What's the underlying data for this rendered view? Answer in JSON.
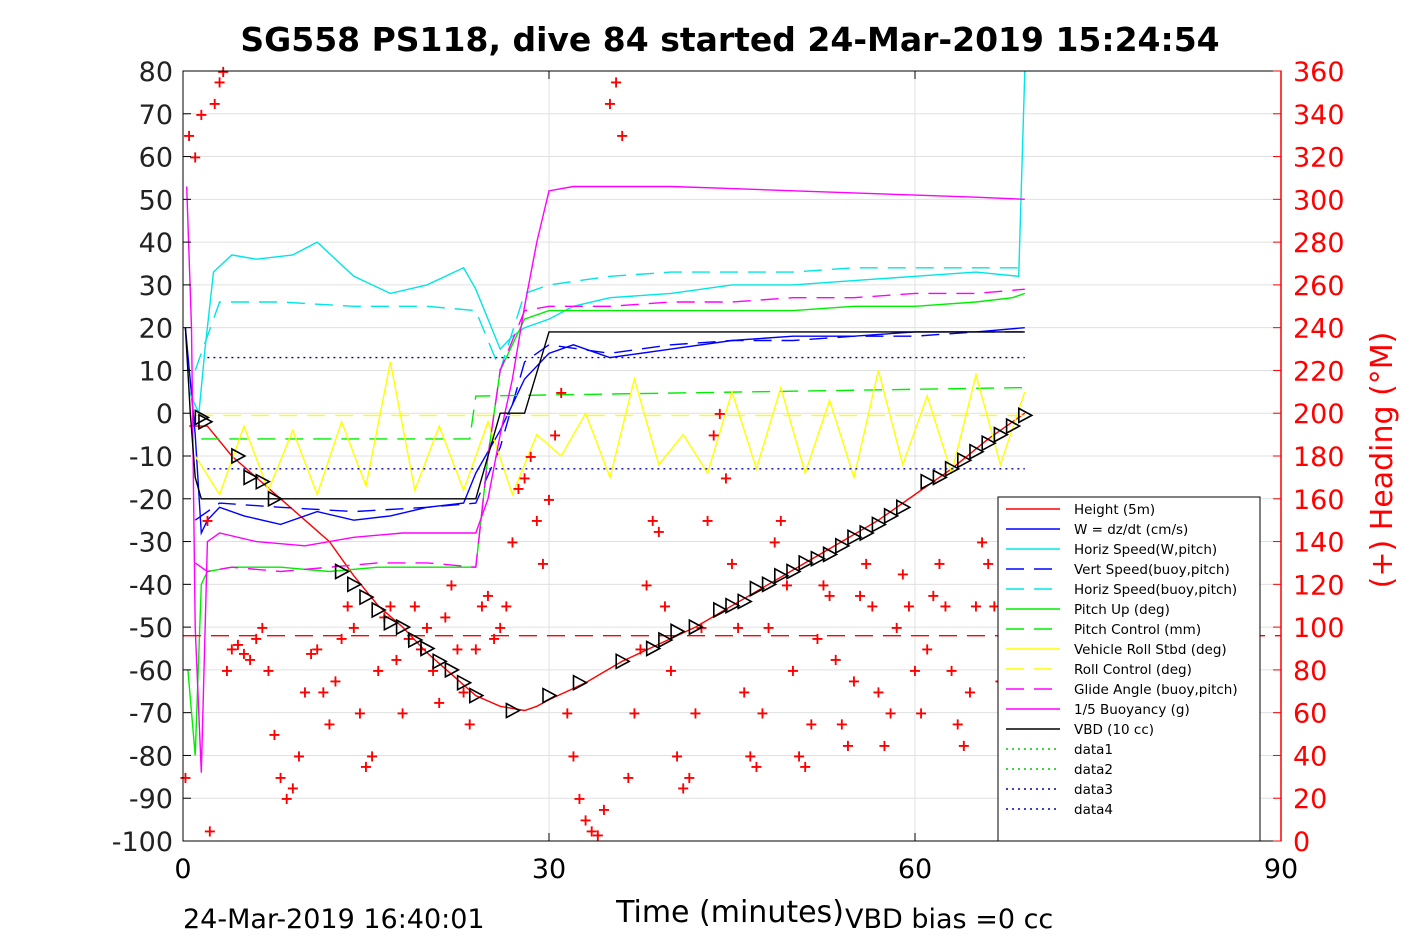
{
  "chart_data": {
    "type": "line",
    "title": "SG558 PS118, dive 84 started 24-Mar-2019 15:24:54",
    "xlabel": "Time (minutes)",
    "ylabel_right": "(+) Heading (°M)",
    "xlim": [
      0,
      90
    ],
    "ylim": [
      -100,
      80
    ],
    "ylim_right": [
      0,
      360
    ],
    "xticks": [
      0,
      30,
      60,
      90
    ],
    "yticks": [
      80,
      70,
      60,
      50,
      40,
      30,
      20,
      10,
      0,
      -10,
      -20,
      -30,
      -40,
      -50,
      -60,
      -70,
      -80,
      -90,
      -100
    ],
    "yticks_right": [
      360,
      340,
      320,
      300,
      280,
      260,
      240,
      220,
      200,
      180,
      160,
      140,
      120,
      100,
      80,
      60,
      40,
      20,
      0
    ],
    "grid": true,
    "legend_position": "lower-right",
    "footer_left": "24-Mar-2019 16:40:01",
    "footer_right": "VBD bias =0 cc",
    "colors": {
      "height": "#ff0000",
      "w": "#0000ff",
      "horiz": "#00e5e5",
      "vert_buoy": "#0000ff",
      "horiz_buoy": "#00e5e5",
      "pitch": "#00ee00",
      "pitch_ctl": "#00ee00",
      "roll": "#ffff00",
      "roll_ctl": "#ffff00",
      "glide": "#ff00ff",
      "buoyancy": "#ff00ff",
      "vbd": "#000000",
      "data": "#00c800",
      "data34": "#0000aa",
      "heading": "#ff0000",
      "axis_right": "#ff0000"
    },
    "series": [
      {
        "name": "Height (5m)",
        "key": "height",
        "style": "solid",
        "x": [
          0.5,
          2,
          4,
          6,
          8,
          10,
          12,
          14,
          16,
          18,
          20,
          22,
          24,
          26,
          27,
          28,
          29,
          30,
          33,
          36,
          39,
          42,
          45,
          48,
          51,
          54,
          57,
          60,
          63,
          66,
          69
        ],
        "values": [
          -3,
          -3,
          -10,
          -15,
          -20,
          -25,
          -30,
          -38,
          -45,
          -50,
          -56,
          -61,
          -66,
          -68.5,
          -69,
          -69.5,
          -68.5,
          -67,
          -63,
          -58,
          -54,
          -50,
          -45,
          -40,
          -35,
          -30,
          -25,
          -19,
          -13,
          -6,
          0
        ]
      },
      {
        "name": "W = dz/dt (cm/s)",
        "key": "w",
        "style": "solid",
        "x": [
          0.2,
          1,
          1.5,
          2,
          3,
          5,
          8,
          11,
          14,
          17,
          20,
          23,
          24,
          26,
          28,
          30,
          32,
          35,
          40,
          45,
          50,
          55,
          60,
          65,
          69
        ],
        "values": [
          20,
          -5,
          -28,
          -25,
          -22,
          -24,
          -26,
          -23,
          -25,
          -24,
          -22,
          -21,
          -14,
          -4,
          8,
          14,
          16,
          13,
          15,
          17,
          18,
          18,
          19,
          19,
          20
        ]
      },
      {
        "name": "Horiz Speed(W,pitch)",
        "key": "horiz",
        "style": "solid",
        "x": [
          0.5,
          1.3,
          1.8,
          2.5,
          4,
          6,
          9,
          11,
          14,
          17,
          20,
          23,
          24,
          25,
          26,
          27,
          28,
          30,
          32,
          35,
          40,
          45,
          50,
          55,
          60,
          65,
          68.5,
          69
        ],
        "values": [
          5,
          0,
          15,
          33,
          37,
          36,
          37,
          40,
          32,
          28,
          30,
          34,
          29,
          22,
          15,
          18,
          20,
          22,
          25,
          27,
          28,
          30,
          30,
          31,
          32,
          33,
          32,
          80
        ]
      },
      {
        "name": "Vert Speed(buoy,pitch)",
        "key": "vert_buoy",
        "style": "dashed",
        "x": [
          1,
          3,
          8,
          14,
          20,
          24,
          26,
          28,
          30,
          35,
          40,
          45,
          50,
          55,
          60,
          65,
          69
        ],
        "values": [
          -25,
          -21,
          -22,
          -23,
          -22,
          -21,
          -8,
          12,
          16,
          14,
          16,
          17,
          17,
          18,
          18,
          19,
          19
        ]
      },
      {
        "name": "Horiz Speed(buoy,pitch)",
        "key": "horiz_buoy",
        "style": "dashed",
        "x": [
          1,
          3,
          8,
          14,
          20,
          24,
          26,
          28,
          30,
          35,
          40,
          45,
          50,
          55,
          60,
          65,
          69
        ],
        "values": [
          10,
          26,
          26,
          25,
          25,
          24,
          10,
          28,
          30,
          32,
          33,
          33,
          33,
          34,
          34,
          34,
          34
        ]
      },
      {
        "name": "Pitch Up (deg)",
        "key": "pitch",
        "style": "solid",
        "x": [
          0.4,
          1,
          1.5,
          2,
          4,
          8,
          12,
          16,
          20,
          24,
          25,
          26,
          28,
          30,
          35,
          40,
          45,
          50,
          55,
          60,
          65,
          68,
          69
        ],
        "values": [
          -60,
          -80,
          -40,
          -37,
          -36,
          -36,
          -37,
          -36,
          -36,
          -36,
          -10,
          10,
          22,
          24,
          24,
          24,
          24,
          24,
          25,
          25,
          26,
          27,
          28
        ]
      },
      {
        "name": "Pitch Control (mm)",
        "key": "pitch_ctl",
        "style": "dashed",
        "x": [
          1.5,
          23.5,
          24,
          69
        ],
        "values": [
          -6,
          -6,
          4,
          6
        ]
      },
      {
        "name": "Vehicle Roll Stbd (deg)",
        "key": "roll",
        "style": "solid",
        "x": [
          1,
          3,
          5,
          7,
          9,
          11,
          13,
          15,
          17,
          19,
          21,
          23,
          25,
          27,
          29,
          31,
          33,
          35,
          37,
          39,
          41,
          43,
          45,
          47,
          49,
          51,
          53,
          55,
          57,
          59,
          61,
          63,
          65,
          67,
          69
        ],
        "values": [
          -10,
          -19,
          -3,
          -18,
          -4,
          -19,
          -2,
          -17,
          12,
          -18,
          -3,
          -18,
          -2,
          -19,
          -5,
          -10,
          0,
          -15,
          8,
          -12,
          -5,
          -14,
          5,
          -13,
          6,
          -14,
          3,
          -15,
          10,
          -12,
          4,
          -14,
          9,
          -12,
          5
        ]
      },
      {
        "name": "Roll Control (deg)",
        "key": "roll_ctl",
        "style": "dashed",
        "x": [
          1,
          69
        ],
        "values": [
          -0.5,
          -0.5
        ]
      },
      {
        "name": "Glide Angle (buoy,pitch)",
        "key": "glide",
        "style": "dashed",
        "x": [
          1,
          2,
          4,
          8,
          12,
          16,
          20,
          24,
          25,
          26,
          28,
          30,
          35,
          40,
          45,
          50,
          55,
          60,
          65,
          69
        ],
        "values": [
          -35,
          -37,
          -36,
          -37,
          -36,
          -35,
          -35,
          -36,
          -10,
          10,
          24,
          25,
          25,
          26,
          26,
          27,
          27,
          28,
          28,
          29
        ]
      },
      {
        "name": "1/5 Buoyancy (g)",
        "key": "buoyancy",
        "style": "solid",
        "x": [
          0.3,
          0.7,
          1,
          1.5,
          2,
          3,
          6,
          10,
          14,
          18,
          22,
          24,
          25,
          26,
          27,
          28,
          29,
          30,
          32,
          36,
          40,
          45,
          50,
          55,
          60,
          65,
          69
        ],
        "values": [
          53,
          20,
          -50,
          -84,
          -30,
          -28,
          -30,
          -31,
          -29,
          -28,
          -28,
          -28,
          -20,
          -5,
          8,
          25,
          40,
          52,
          53,
          53,
          53,
          52.5,
          52,
          51.5,
          51,
          50.5,
          50
        ]
      },
      {
        "name": "VBD (10 cc)",
        "key": "vbd",
        "style": "solid",
        "x": [
          0.2,
          0.6,
          1,
          1.5,
          3,
          10,
          20,
          24,
          26,
          28,
          30,
          35,
          40,
          50,
          60,
          69
        ],
        "values": [
          20,
          0,
          -15,
          -20,
          -20,
          -20,
          -20,
          -20,
          0,
          0,
          19,
          19,
          19,
          19,
          19,
          19
        ]
      },
      {
        "name": "data1",
        "key": "data",
        "style": "dotted",
        "x": [],
        "values": []
      },
      {
        "name": "data2",
        "key": "data",
        "style": "dotted",
        "x": [],
        "values": []
      },
      {
        "name": "data3",
        "key": "data34",
        "style": "dotted",
        "x": [
          2,
          69
        ],
        "values": [
          13,
          13
        ]
      },
      {
        "name": "data4",
        "key": "data34",
        "style": "dotted",
        "x": [
          2,
          69
        ],
        "values": [
          -13,
          -13
        ]
      }
    ],
    "extra_lines": [
      {
        "key": "height",
        "style": "dashed",
        "x": [
          0,
          90
        ],
        "values": [
          -52,
          -52
        ]
      }
    ],
    "heading_markers": {
      "key": "heading",
      "x": [
        0.2,
        0.5,
        1,
        1.5,
        2,
        2.2,
        2.6,
        3,
        3.3,
        3.6,
        4,
        4.5,
        5,
        5.5,
        6,
        6.5,
        7,
        7.5,
        8,
        8.5,
        9,
        9.5,
        10,
        10.5,
        11,
        11.5,
        12,
        12.5,
        13,
        13.5,
        14,
        14.5,
        15,
        15.5,
        16,
        16.5,
        17,
        17.5,
        18,
        18.5,
        19,
        19.5,
        20,
        20.5,
        21,
        21.5,
        22,
        22.5,
        23,
        23.5,
        24,
        24.5,
        25,
        25.5,
        26,
        26.5,
        27,
        27.5,
        28,
        28.5,
        29,
        29.5,
        30,
        30.5,
        31,
        31.5,
        32,
        32.5,
        33,
        33.5,
        34,
        34.5,
        35,
        35.5,
        36,
        36.5,
        37,
        37.5,
        38,
        38.5,
        39,
        39.5,
        40,
        40.5,
        41,
        41.5,
        42,
        42.5,
        43,
        43.5,
        44,
        44.5,
        45,
        45.5,
        46,
        46.5,
        47,
        47.5,
        48,
        48.5,
        49,
        49.5,
        50,
        50.5,
        51,
        51.5,
        52,
        52.5,
        53,
        53.5,
        54,
        54.5,
        55,
        55.5,
        56,
        56.5,
        57,
        57.5,
        58,
        58.5,
        59,
        59.5,
        60,
        60.5,
        61,
        61.5,
        62,
        62.5,
        63,
        63.5,
        64,
        64.5,
        65,
        65.5,
        66,
        66.5,
        67,
        67.5,
        68,
        68.5,
        69
      ],
      "values": [
        30,
        330,
        320,
        340,
        150,
        5,
        345,
        355,
        360,
        80,
        90,
        92,
        88,
        85,
        95,
        100,
        80,
        50,
        30,
        20,
        25,
        40,
        70,
        88,
        90,
        70,
        55,
        75,
        95,
        110,
        100,
        60,
        35,
        40,
        80,
        105,
        110,
        85,
        60,
        95,
        110,
        90,
        100,
        80,
        65,
        105,
        120,
        90,
        70,
        55,
        90,
        110,
        115,
        95,
        100,
        110,
        140,
        165,
        170,
        180,
        150,
        130,
        160,
        190,
        210,
        60,
        40,
        20,
        10,
        5,
        3,
        15,
        345,
        355,
        330,
        30,
        60,
        90,
        120,
        150,
        145,
        110,
        80,
        40,
        25,
        30,
        60,
        100,
        150,
        190,
        200,
        170,
        130,
        100,
        70,
        40,
        35,
        60,
        100,
        140,
        150,
        120,
        80,
        40,
        35,
        55,
        95,
        120,
        115,
        85,
        55,
        45,
        75,
        115,
        130,
        110,
        70,
        45,
        60,
        100,
        125,
        110,
        80,
        60,
        90,
        115,
        130,
        110,
        80,
        55,
        45,
        70,
        110,
        140,
        130,
        110,
        75,
        60,
        95,
        115,
        120
      ]
    },
    "vbd_triangles": {
      "key": "vbd",
      "x": [
        1.5,
        1.8,
        4.5,
        5.5,
        6.5,
        7.5,
        13,
        14,
        15,
        16,
        17,
        18,
        19,
        20,
        21,
        22,
        23,
        24,
        27,
        30,
        32.5,
        36,
        38.5,
        39.5,
        40.5,
        42,
        44,
        45,
        46,
        47,
        48,
        49,
        50,
        51,
        52,
        53,
        54,
        55,
        56,
        57,
        58,
        59,
        61,
        62,
        63,
        64,
        65,
        66,
        67,
        68,
        69
      ],
      "values": [
        -1,
        -2,
        -10,
        -15,
        -16,
        -20,
        -37,
        -40,
        -43,
        -46,
        -49,
        -50,
        -53,
        -55,
        -58,
        -60,
        -63,
        -66,
        -69.5,
        -66,
        -63,
        -58,
        -55,
        -53,
        -51,
        -50,
        -46,
        -45,
        -44,
        -41,
        -40,
        -38,
        -37,
        -35,
        -34,
        -33,
        -31,
        -29,
        -28,
        -26,
        -24,
        -22,
        -16,
        -15,
        -13,
        -11,
        -9,
        -7,
        -5,
        -3,
        -0.5
      ]
    }
  }
}
